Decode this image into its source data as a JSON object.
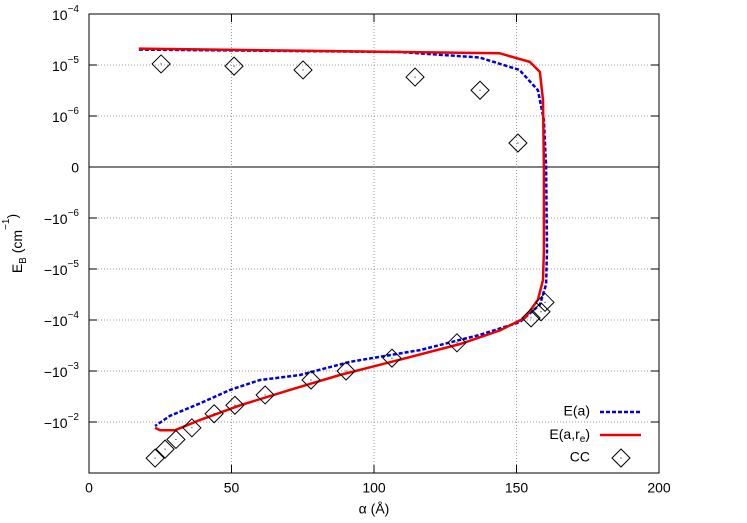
{
  "chart_data": {
    "type": "line",
    "xlabel": "α (Å)",
    "ylabel_parts": [
      "E",
      "B",
      " (cm",
      "−1",
      ")"
    ],
    "xlim": [
      0,
      200
    ],
    "xticks": [
      0,
      50,
      100,
      150,
      200
    ],
    "ylim": [
      -0.1,
      0.0001
    ],
    "yscale": "symlog",
    "linthresh": 1e-06,
    "yticks": [
      {
        "value": 0.0001,
        "label": "10",
        "exp": "−4"
      },
      {
        "value": 1e-05,
        "label": "10",
        "exp": "−5"
      },
      {
        "value": 1e-06,
        "label": "10",
        "exp": "−6"
      },
      0,
      {
        "value": -1e-06,
        "label": "−10",
        "exp": "−6"
      },
      {
        "value": -1e-05,
        "label": "−10",
        "exp": "−5"
      },
      {
        "value": -0.0001,
        "label": "−10",
        "exp": "−4"
      },
      {
        "value": -0.001,
        "label": "−10",
        "exp": "−3"
      },
      {
        "value": -0.01,
        "label": "−10",
        "exp": "−2"
      }
    ],
    "grid": true,
    "legend": "lower right",
    "series": [
      {
        "name": "E(a)",
        "color": "#0000dd",
        "dashed": true,
        "x": [
          17.5,
          109,
          137,
          151,
          157.5,
          159.6,
          160.4,
          160.7,
          160.4,
          158.2,
          151.2,
          137.2,
          116.1,
          91.6,
          74,
          60,
          49.5,
          39,
          28.4,
          23.2
        ],
        "values": [
          2e-05,
          1.8e-05,
          1.4e-05,
          8e-06,
          3.2e-06,
          9.2e-07,
          0,
          -4.3e-06,
          -2e-05,
          -5e-05,
          -0.00011,
          -0.000195,
          -0.00039,
          -0.00066,
          -0.0012,
          -0.0015,
          -0.00235,
          -0.0043,
          -0.0076,
          -0.012
        ]
      },
      {
        "name": {
          "text": "E(a,r",
          "sub": "e",
          "tail": ")"
        },
        "color": "#ee0000",
        "dashed": false,
        "x": [
          17.5,
          144,
          154.7,
          158.2,
          159.3,
          159.6,
          159.6,
          159.3,
          157.5,
          153,
          144.2,
          130.2,
          109.1,
          88,
          70.5,
          53,
          39,
          30.2,
          24.9,
          23.2
        ],
        "values": [
          2.1e-05,
          1.7e-05,
          1.15e-05,
          7.3e-06,
          2.05e-06,
          0,
          -4.3e-06,
          -1.65e-05,
          -4e-05,
          -9.1e-05,
          -0.00016,
          -0.000295,
          -0.0006,
          -0.0012,
          -0.00235,
          -0.0047,
          -0.0091,
          -0.0145,
          -0.0145,
          -0.013
        ]
      },
      {
        "name": "CC",
        "color": "#000000",
        "marker": "diamond",
        "x": [
          25.3,
          50.9,
          75.1,
          114.4,
          137.2,
          150.5,
          160,
          158.6,
          155.1,
          129.1,
          106.3,
          90.2,
          77.9,
          61.8,
          51.2,
          43.9,
          36.1,
          30.5,
          26.7,
          23.2
        ],
        "values": [
          1.05e-05,
          9.5e-06,
          8e-06,
          5.8e-06,
          3.2e-06,
          4.7e-07,
          -4.5e-05,
          -6.9e-05,
          -9.1e-05,
          -0.00028,
          -0.00056,
          -0.001,
          -0.0015,
          -0.00295,
          -0.0047,
          -0.0069,
          -0.013,
          -0.022,
          -0.034,
          -0.051
        ]
      }
    ]
  }
}
